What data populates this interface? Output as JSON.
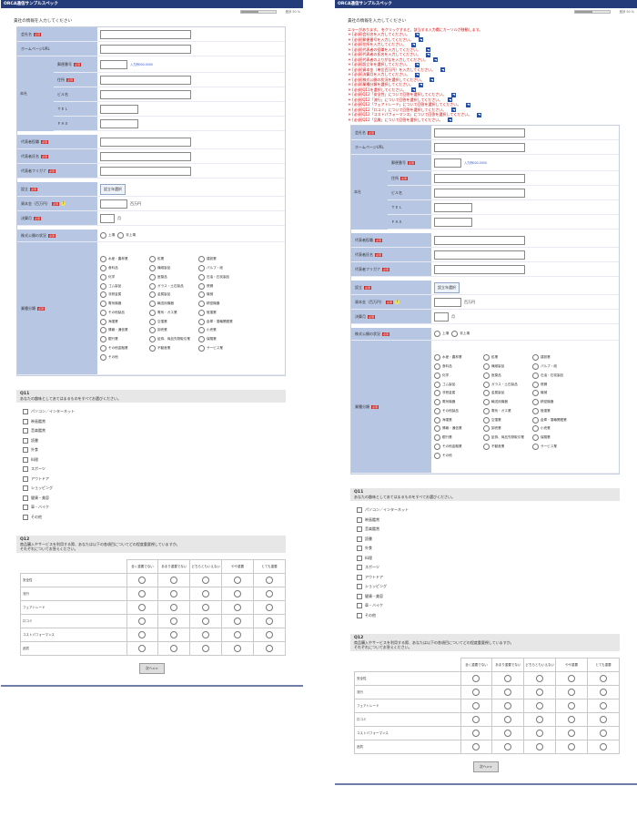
{
  "app_title": "ORCA通信サンプルスペック",
  "progress": {
    "label": "進捗 50 %",
    "fraction": 0.5
  },
  "intro": "貴社の情報を入力してください",
  "error_header": "エラーがあります。  をクリックすると、該当する入力欄にカーソルが移動します。",
  "errors": [
    "＊ [必須]会社名を入力してください。",
    "＊ [必須]郵便番号を入力してください。",
    "＊ [必須]住所を入力してください。",
    "＊ [必須]代表者の役職を入力してください。",
    "＊ [必須]代表者の氏名を入力してください。",
    "＊ [必須]代表者のふりがなを入力してください。",
    "＊ [必須]設立年を選択してください。",
    "＊ [必須]資本金（単位百万円）を入力してください。",
    "＊ [必須]決算月を入力してください。",
    "＊ [必須]株式公開の状況を選択してください。",
    "＊ [必須]業種分類を選択してください。",
    "＊ [必須]Q11を選択してください。",
    "＊ [必須]Q12「安全性」について回答を選択してください。",
    "＊ [必須]Q12「流行」について回答を選択してください。",
    "＊ [必須]Q12「フェアトレード」について回答を選択してください。",
    "＊ [必須]Q12「口コミ」について回答を選択してください。",
    "＊ [必須]Q12「コストパフォーマンス」について回答を選択してください。",
    "＊ [必須]Q12「品質」について回答を選択してください。"
  ],
  "form": {
    "company_name": "会社名",
    "homepage": "ホームページURL",
    "hq": "本社",
    "postal": "郵便番号",
    "postal_link": "入力例000-0000",
    "address": "住所",
    "building": "ビル名",
    "tel": "ＴＥＬ",
    "fax": "ＦＡＸ",
    "rep_title": "代表者役職",
    "rep_name": "代表者氏名",
    "rep_kana": "代表者フリガナ",
    "founded": "設立",
    "founded_btn": "設立年選択",
    "capital": "資本金（百万円）",
    "capital_unit": "百万円",
    "fiscal": "決算月",
    "fiscal_unit": "月",
    "listing": "株式公開の状況",
    "listing_opts": [
      "上場",
      "非上場"
    ],
    "industry": "業種分類",
    "industries": [
      "水産・農林業",
      "鉱業",
      "建設業",
      "食料品",
      "繊維製品",
      "パルプ・紙",
      "化学",
      "医薬品",
      "石油・石炭製品",
      "ゴム製品",
      "ガラス・土石製品",
      "鉄鋼",
      "非鉄金属",
      "金属製品",
      "機械",
      "電気機器",
      "輸送用機器",
      "精密機器",
      "その他製品",
      "電気・ガス業",
      "陸運業",
      "海運業",
      "空運業",
      "倉庫・運輸関連業",
      "情報・通信業",
      "卸売業",
      "小売業",
      "銀行業",
      "証券、商品先物取引業",
      "保険業",
      "その他金融業",
      "不動産業",
      "サービス業",
      "その他"
    ],
    "required": "必須"
  },
  "q11": {
    "title": "Q11",
    "text": "あなたの趣味としてあてはまるものをすべてお選びください。",
    "options": [
      "パソコン／インターネット",
      "映画鑑賞",
      "音楽鑑賞",
      "読書",
      "外食",
      "料理",
      "スポーツ",
      "アウトドア",
      "ショッピング",
      "健康・美容",
      "車・バイク",
      "その他"
    ]
  },
  "q12": {
    "title": "Q12",
    "text": "商品購入やサービスを利用する際、あなたは以下の各項目についてどの程度重要視していますか。",
    "text2": "それぞれについてお答えください。",
    "columns": [
      "全く重要でない",
      "あまり重要でない",
      "どちらともいえない",
      "やや重要",
      "とても重要"
    ],
    "rows": [
      "安全性",
      "流行",
      "フェアトレード",
      "口コミ",
      "コストパフォーマンス",
      "品質"
    ]
  },
  "next_label": "次へ>>"
}
